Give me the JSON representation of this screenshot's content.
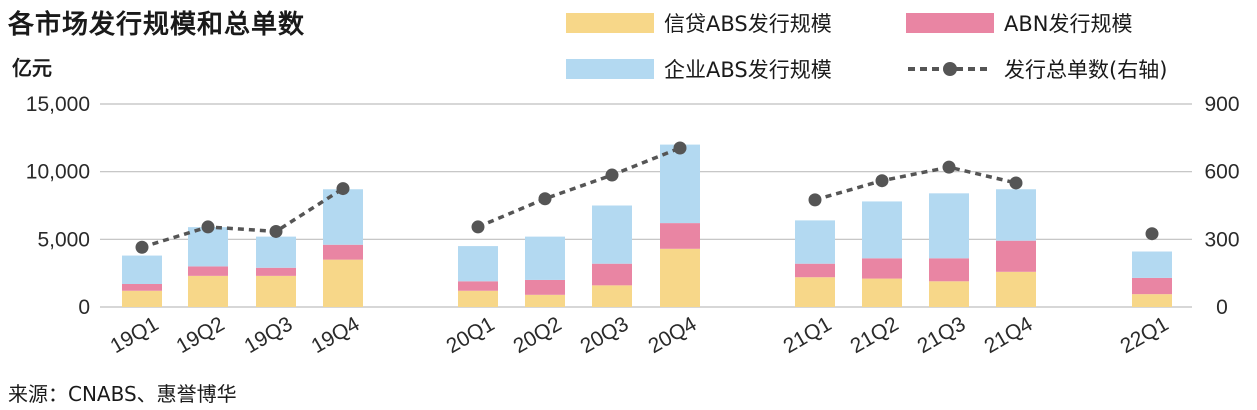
{
  "title": "各市场发行规模和总单数",
  "unit": "亿元",
  "source": "来源：CNABS、惠誉博华",
  "colors": {
    "credit_abs": "#f7d789",
    "abn": "#e985a3",
    "corporate_abs": "#b3d9f1",
    "line": "#555555",
    "grid": "#bfbfbf"
  },
  "chart_data": {
    "type": "bar",
    "stacked": true,
    "title": "各市场发行规模和总单数",
    "ylabel": "亿元",
    "ylim": [
      0,
      15000
    ],
    "y2lim": [
      0,
      900
    ],
    "yticks": [
      "0",
      "5,000",
      "10,000",
      "15,000"
    ],
    "y2ticks": [
      "0",
      "300",
      "600",
      "900"
    ],
    "grid": true,
    "legend": "top-right",
    "categories": [
      "19Q1",
      "19Q2",
      "19Q3",
      "19Q4",
      "20Q1",
      "20Q2",
      "20Q3",
      "20Q4",
      "21Q1",
      "21Q2",
      "21Q3",
      "21Q4",
      "22Q1"
    ],
    "series": [
      {
        "name": "信贷ABS发行规模",
        "values": [
          1200,
          2300,
          2300,
          3500,
          1200,
          900,
          1600,
          4300,
          2200,
          2100,
          1900,
          2600,
          950
        ]
      },
      {
        "name": "ABN发行规模",
        "values": [
          500,
          700,
          600,
          1100,
          700,
          1100,
          1600,
          1900,
          1000,
          1500,
          1700,
          2300,
          1200
        ]
      },
      {
        "name": "企业ABS发行规模",
        "values": [
          2100,
          2900,
          2300,
          4100,
          2600,
          3200,
          4300,
          5800,
          3200,
          4200,
          4800,
          3800,
          1950
        ]
      },
      {
        "name": "发行总单数(右轴)",
        "type": "line",
        "axis": "right",
        "values": [
          265,
          355,
          335,
          525,
          355,
          480,
          585,
          705,
          475,
          560,
          620,
          550,
          null
        ]
      }
    ],
    "standalone_point": {
      "category": "22Q1",
      "value": 325
    }
  }
}
